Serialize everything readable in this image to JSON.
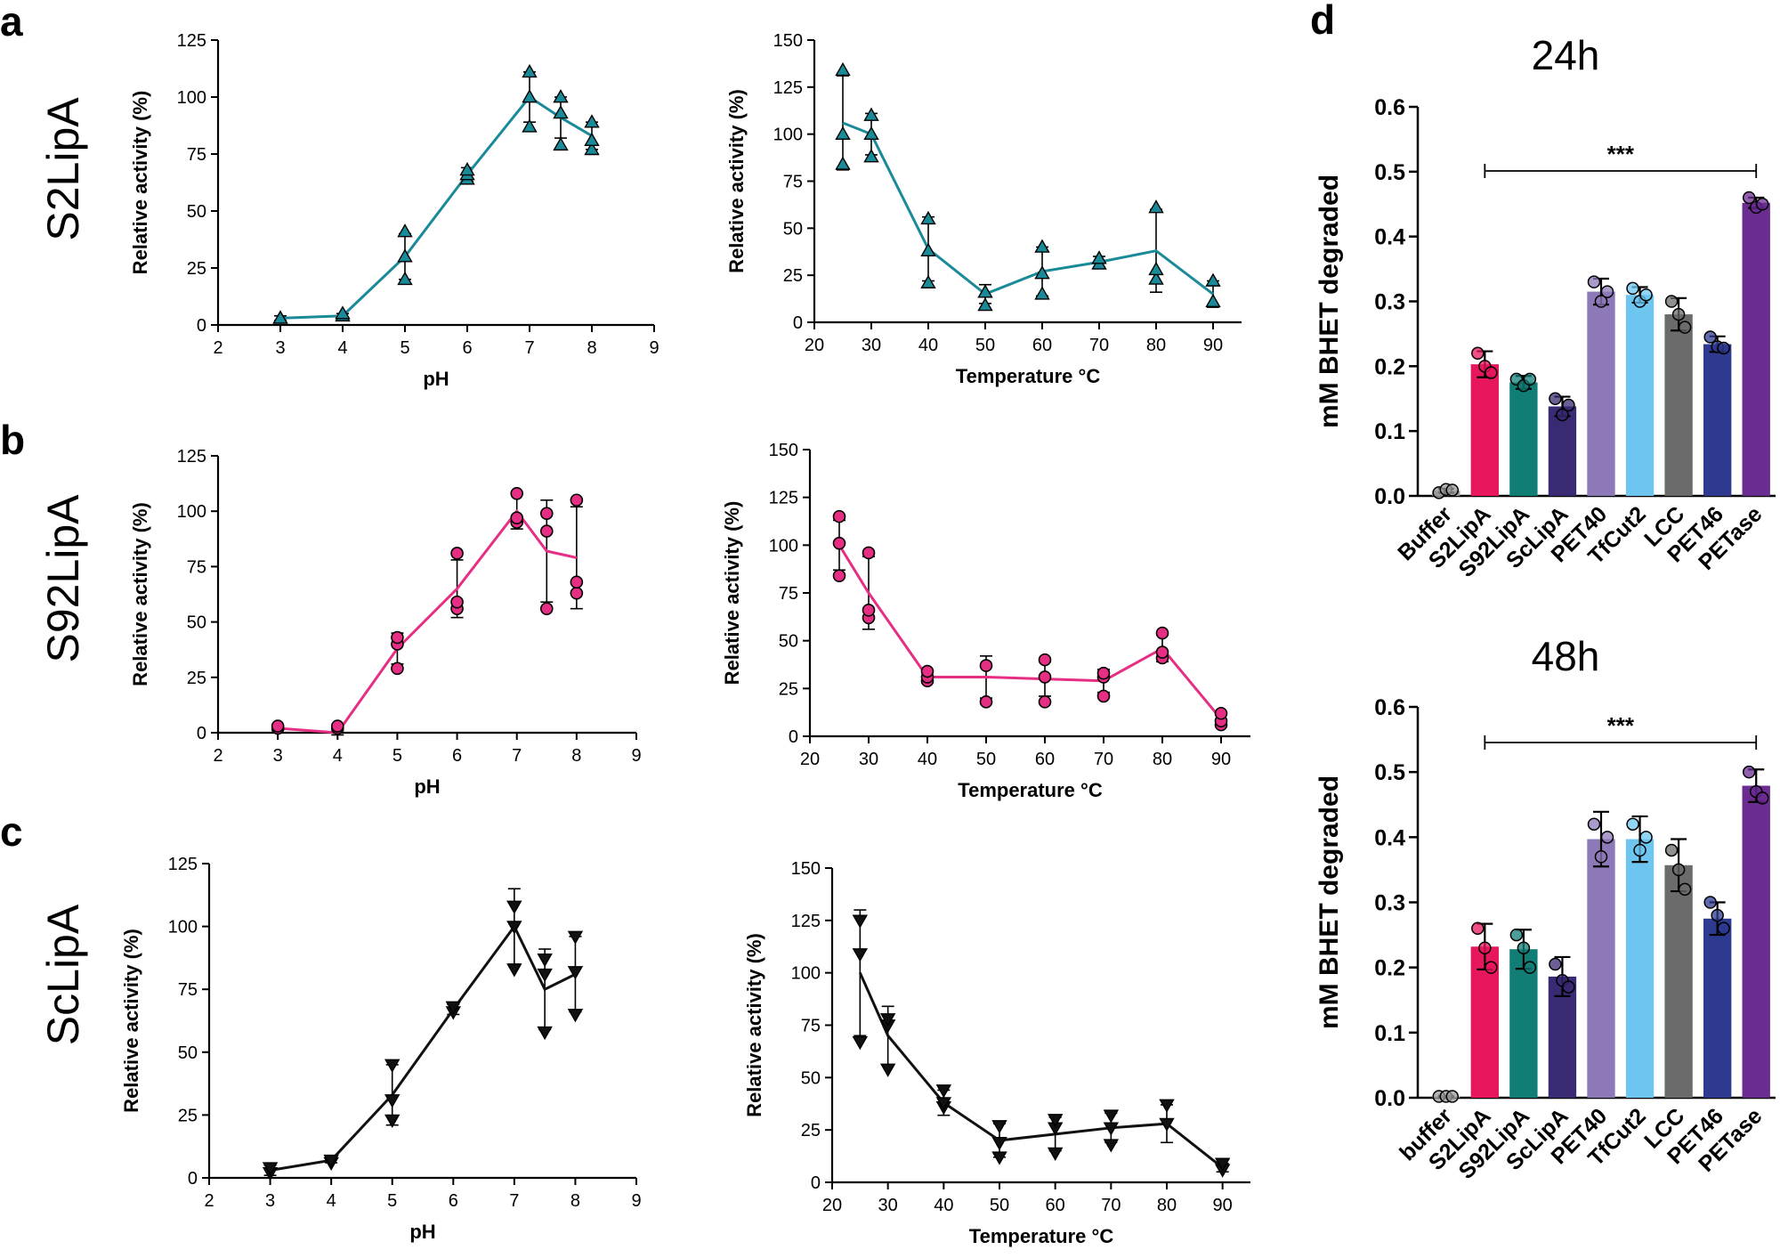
{
  "labels": {
    "panel_a": "a",
    "panel_b": "b",
    "panel_c": "c",
    "panel_d": "d",
    "row_a": "S2LipA",
    "row_b": "S92LipA",
    "row_c": "ScLipA"
  },
  "colors": {
    "s2": "#1A8A99",
    "s92": "#E62E84",
    "sc": "#111111"
  },
  "chart_data": [
    {
      "id": "a-ph",
      "type": "line",
      "xlabel": "pH",
      "ylabel": "Relative activity (%)",
      "xlim": [
        2,
        9
      ],
      "ylim": [
        0,
        125
      ],
      "xticks": [
        "2",
        "3",
        "4",
        "5",
        "6",
        "7",
        "8",
        "9"
      ],
      "yticks": [
        "0",
        "25",
        "50",
        "75",
        "100",
        "125"
      ],
      "marker": "triangle-up",
      "color": "#1A8A99",
      "x": [
        3,
        4,
        5,
        6,
        7,
        7.5,
        8
      ],
      "y": [
        3,
        4,
        30,
        66,
        100,
        91,
        83
      ],
      "err": [
        1,
        1,
        10,
        3,
        11,
        9,
        6
      ],
      "points": [
        [
          3,
          3
        ],
        [
          3,
          3
        ],
        [
          4,
          4
        ],
        [
          4,
          5
        ],
        [
          5,
          20
        ],
        [
          5,
          30
        ],
        [
          5,
          41
        ],
        [
          6,
          64
        ],
        [
          6,
          66
        ],
        [
          6,
          68
        ],
        [
          7,
          87
        ],
        [
          7,
          100
        ],
        [
          7,
          111
        ],
        [
          7.5,
          79
        ],
        [
          7.5,
          93
        ],
        [
          7.5,
          100
        ],
        [
          8,
          77
        ],
        [
          8,
          81
        ],
        [
          8,
          89
        ]
      ]
    },
    {
      "id": "a-temp",
      "type": "line",
      "xlabel": "Temperature °C",
      "ylabel": "Relative activity (%)",
      "xlim": [
        20,
        95
      ],
      "ylim": [
        0,
        150
      ],
      "xticks": [
        "20",
        "30",
        "40",
        "50",
        "60",
        "70",
        "80",
        "90"
      ],
      "yticks": [
        "0",
        "25",
        "50",
        "75",
        "100",
        "125",
        "150"
      ],
      "marker": "triangle-up",
      "color": "#1A8A99",
      "x": [
        25,
        30,
        40,
        50,
        60,
        70,
        80,
        90
      ],
      "y": [
        106,
        100,
        39,
        15,
        27,
        32,
        38,
        15
      ],
      "err": [
        25,
        11,
        17,
        5,
        13,
        3,
        22,
        7
      ],
      "points": [
        [
          25,
          84
        ],
        [
          25,
          100
        ],
        [
          25,
          134
        ],
        [
          30,
          88
        ],
        [
          30,
          100
        ],
        [
          30,
          110
        ],
        [
          40,
          21
        ],
        [
          40,
          38
        ],
        [
          40,
          55
        ],
        [
          50,
          9
        ],
        [
          50,
          16
        ],
        [
          60,
          15
        ],
        [
          60,
          26
        ],
        [
          60,
          40
        ],
        [
          70,
          31
        ],
        [
          70,
          34
        ],
        [
          80,
          23
        ],
        [
          80,
          28
        ],
        [
          80,
          61
        ],
        [
          90,
          11
        ],
        [
          90,
          22
        ]
      ]
    },
    {
      "id": "b-ph",
      "type": "line",
      "xlabel": "pH",
      "ylabel": "Relative activity (%)",
      "xlim": [
        2,
        9
      ],
      "ylim": [
        0,
        125
      ],
      "xticks": [
        "2",
        "3",
        "4",
        "5",
        "6",
        "7",
        "8",
        "9"
      ],
      "yticks": [
        "0",
        "25",
        "50",
        "75",
        "100",
        "125"
      ],
      "marker": "circle",
      "color": "#E62E84",
      "x": [
        3,
        4,
        5,
        6,
        7,
        7.5,
        8
      ],
      "y": [
        2,
        0,
        38,
        65,
        100,
        82,
        79
      ],
      "err": [
        1,
        1,
        7,
        13,
        8,
        23,
        23
      ],
      "points": [
        [
          3,
          2
        ],
        [
          3,
          3
        ],
        [
          4,
          2
        ],
        [
          4,
          3
        ],
        [
          5,
          29
        ],
        [
          5,
          40
        ],
        [
          5,
          43
        ],
        [
          6,
          56
        ],
        [
          6,
          59
        ],
        [
          6,
          81
        ],
        [
          7,
          95
        ],
        [
          7,
          97
        ],
        [
          7,
          108
        ],
        [
          7.5,
          56
        ],
        [
          7.5,
          91
        ],
        [
          7.5,
          99
        ],
        [
          8,
          63
        ],
        [
          8,
          68
        ],
        [
          8,
          105
        ]
      ]
    },
    {
      "id": "b-temp",
      "type": "line",
      "xlabel": "Temperature °C",
      "ylabel": "Relative activity (%)",
      "xlim": [
        20,
        95
      ],
      "ylim": [
        0,
        150
      ],
      "xticks": [
        "20",
        "30",
        "40",
        "50",
        "60",
        "70",
        "80",
        "90"
      ],
      "yticks": [
        "0",
        "25",
        "50",
        "75",
        "100",
        "125",
        "150"
      ],
      "marker": "circle",
      "color": "#E62E84",
      "x": [
        25,
        30,
        40,
        50,
        60,
        70,
        80,
        90
      ],
      "y": [
        100,
        75,
        31,
        31,
        30,
        29,
        46,
        9
      ],
      "err": [
        13,
        19,
        3,
        11,
        9,
        6,
        7,
        3
      ],
      "points": [
        [
          25,
          84
        ],
        [
          25,
          101
        ],
        [
          25,
          115
        ],
        [
          30,
          62
        ],
        [
          30,
          66
        ],
        [
          30,
          96
        ],
        [
          40,
          29
        ],
        [
          40,
          31
        ],
        [
          40,
          34
        ],
        [
          50,
          18
        ],
        [
          50,
          37
        ],
        [
          60,
          18
        ],
        [
          60,
          31
        ],
        [
          60,
          40
        ],
        [
          70,
          21
        ],
        [
          70,
          31
        ],
        [
          70,
          33
        ],
        [
          80,
          41
        ],
        [
          80,
          44
        ],
        [
          80,
          54
        ],
        [
          90,
          6
        ],
        [
          90,
          8
        ],
        [
          90,
          12
        ]
      ]
    },
    {
      "id": "c-ph",
      "type": "line",
      "xlabel": "pH",
      "ylabel": "Relative activity (%)",
      "xlim": [
        2,
        9
      ],
      "ylim": [
        0,
        125
      ],
      "xticks": [
        "2",
        "3",
        "4",
        "5",
        "6",
        "7",
        "8",
        "9"
      ],
      "yticks": [
        "0",
        "25",
        "50",
        "75",
        "100",
        "125"
      ],
      "marker": "triangle-down",
      "color": "#111111",
      "x": [
        3,
        4,
        5,
        6,
        7,
        7.5,
        8
      ],
      "y": [
        3,
        7,
        33,
        67,
        100,
        75,
        81
      ],
      "err": [
        2,
        1,
        12,
        2,
        15,
        16,
        15
      ],
      "points": [
        [
          3,
          2
        ],
        [
          3,
          4
        ],
        [
          4,
          6
        ],
        [
          4,
          7
        ],
        [
          5,
          23
        ],
        [
          5,
          31
        ],
        [
          5,
          45
        ],
        [
          6,
          66
        ],
        [
          6,
          68
        ],
        [
          7,
          83
        ],
        [
          7,
          100
        ],
        [
          7,
          108
        ],
        [
          7.5,
          58
        ],
        [
          7.5,
          81
        ],
        [
          7.5,
          87
        ],
        [
          8,
          65
        ],
        [
          8,
          82
        ],
        [
          8,
          96
        ]
      ]
    },
    {
      "id": "c-temp",
      "type": "line",
      "xlabel": "Temperature °C",
      "ylabel": "Relative activity (%)",
      "xlim": [
        20,
        95
      ],
      "ylim": [
        0,
        150
      ],
      "xticks": [
        "20",
        "30",
        "40",
        "50",
        "60",
        "70",
        "80",
        "90"
      ],
      "yticks": [
        "0",
        "25",
        "50",
        "75",
        "100",
        "125",
        "150"
      ],
      "marker": "triangle-down",
      "color": "#111111",
      "x": [
        25,
        30,
        40,
        50,
        60,
        70,
        80,
        90
      ],
      "y": [
        100,
        70,
        38,
        20,
        23,
        26,
        28,
        7
      ],
      "err": [
        30,
        14,
        6,
        8,
        8,
        7,
        9,
        2
      ],
      "points": [
        [
          25,
          67
        ],
        [
          25,
          109
        ],
        [
          25,
          125
        ],
        [
          30,
          54
        ],
        [
          30,
          75
        ],
        [
          30,
          78
        ],
        [
          40,
          36
        ],
        [
          40,
          38
        ],
        [
          40,
          44
        ],
        [
          50,
          12
        ],
        [
          50,
          19
        ],
        [
          50,
          27
        ],
        [
          60,
          14
        ],
        [
          60,
          26
        ],
        [
          60,
          30
        ],
        [
          70,
          18
        ],
        [
          70,
          26
        ],
        [
          70,
          32
        ],
        [
          80,
          28
        ],
        [
          80,
          37
        ],
        [
          90,
          6
        ],
        [
          90,
          9
        ]
      ]
    },
    {
      "id": "d-24h",
      "type": "bar",
      "title": "24h",
      "xlabel": "",
      "ylabel": "mM BHET degraded",
      "ylim": [
        0,
        0.6
      ],
      "yticks": [
        "0.0",
        "0.1",
        "0.2",
        "0.3",
        "0.4",
        "0.5",
        "0.6"
      ],
      "categories": [
        "Buffer",
        "S2LipA",
        "S92LipA",
        "ScLipA",
        "PET40",
        "TfCut2",
        "LCC",
        "PET46",
        "PETase"
      ],
      "values": [
        0.008,
        0.203,
        0.175,
        0.138,
        0.315,
        0.31,
        0.28,
        0.234,
        0.452
      ],
      "err": [
        0.003,
        0.02,
        0.01,
        0.015,
        0.02,
        0.012,
        0.025,
        0.012,
        0.008
      ],
      "colors": [
        "#9A9A9A",
        "#E8175D",
        "#117E76",
        "#3A2A73",
        "#8E79B8",
        "#6EC6F0",
        "#6B6B6B",
        "#2E3A8F",
        "#6B2C91"
      ],
      "points": [
        [
          0.005,
          0.01,
          0.009
        ],
        [
          0.22,
          0.2,
          0.19
        ],
        [
          0.18,
          0.17,
          0.18
        ],
        [
          0.15,
          0.125,
          0.14
        ],
        [
          0.33,
          0.3,
          0.315
        ],
        [
          0.32,
          0.3,
          0.31
        ],
        [
          0.3,
          0.28,
          0.26
        ],
        [
          0.245,
          0.23,
          0.228
        ],
        [
          0.46,
          0.445,
          0.45
        ]
      ],
      "significance": "***"
    },
    {
      "id": "d-48h",
      "type": "bar",
      "title": "48h",
      "xlabel": "",
      "ylabel": "mM BHET degraded",
      "ylim": [
        0,
        0.6
      ],
      "yticks": [
        "0.0",
        "0.1",
        "0.2",
        "0.3",
        "0.4",
        "0.5",
        "0.6"
      ],
      "categories": [
        "buffer",
        "S2LipA",
        "S92LipA",
        "ScLipA",
        "PET40",
        "TfCut2",
        "LCC",
        "PET46",
        "PETase"
      ],
      "values": [
        0.002,
        0.232,
        0.228,
        0.186,
        0.397,
        0.397,
        0.357,
        0.275,
        0.479
      ],
      "err": [
        0.001,
        0.035,
        0.03,
        0.03,
        0.042,
        0.035,
        0.04,
        0.025,
        0.025
      ],
      "colors": [
        "#9A9A9A",
        "#E8175D",
        "#117E76",
        "#3A2A73",
        "#8E79B8",
        "#6EC6F0",
        "#6B6B6B",
        "#2E3A8F",
        "#6B2C91"
      ],
      "points": [
        [
          0.002,
          0.002,
          0.002
        ],
        [
          0.26,
          0.23,
          0.2
        ],
        [
          0.25,
          0.23,
          0.2
        ],
        [
          0.205,
          0.18,
          0.17
        ],
        [
          0.42,
          0.37,
          0.4
        ],
        [
          0.42,
          0.38,
          0.4
        ],
        [
          0.38,
          0.35,
          0.32
        ],
        [
          0.3,
          0.28,
          0.26
        ],
        [
          0.5,
          0.47,
          0.46
        ]
      ],
      "significance": "***"
    }
  ]
}
